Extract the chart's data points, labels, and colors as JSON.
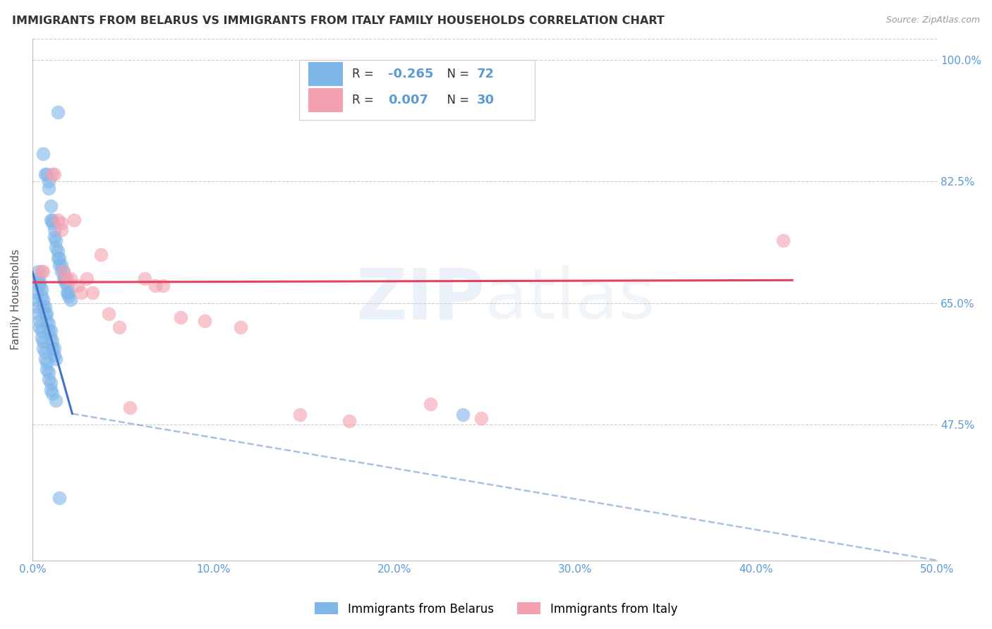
{
  "title": "IMMIGRANTS FROM BELARUS VS IMMIGRANTS FROM ITALY FAMILY HOUSEHOLDS CORRELATION CHART",
  "source": "Source: ZipAtlas.com",
  "ylabel": "Family Households",
  "legend_labels": [
    "Immigrants from Belarus",
    "Immigrants from Italy"
  ],
  "R_belarus": -0.265,
  "N_belarus": 72,
  "R_italy": 0.007,
  "N_italy": 30,
  "xlim": [
    0.0,
    0.5
  ],
  "ylim": [
    0.28,
    1.03
  ],
  "yticks": [
    0.475,
    0.65,
    0.825,
    1.0
  ],
  "ytick_labels": [
    "47.5%",
    "65.0%",
    "82.5%",
    "100.0%"
  ],
  "xticks": [
    0.0,
    0.1,
    0.2,
    0.3,
    0.4,
    0.5
  ],
  "xtick_labels": [
    "0.0%",
    "10.0%",
    "20.0%",
    "30.0%",
    "40.0%",
    "50.0%"
  ],
  "color_belarus": "#7EB6E8",
  "color_italy": "#F4A0B0",
  "color_line_belarus": "#4472C4",
  "color_line_italy": "#E84060",
  "color_axis_labels": "#5B9BD5",
  "watermark_zip": "ZIP",
  "watermark_atlas": "atlas",
  "scatter_belarus_x": [
    0.014,
    0.006,
    0.007,
    0.008,
    0.009,
    0.009,
    0.01,
    0.01,
    0.011,
    0.011,
    0.012,
    0.012,
    0.013,
    0.013,
    0.014,
    0.014,
    0.015,
    0.015,
    0.016,
    0.016,
    0.017,
    0.017,
    0.018,
    0.018,
    0.019,
    0.019,
    0.02,
    0.02,
    0.021,
    0.003,
    0.003,
    0.004,
    0.004,
    0.005,
    0.005,
    0.006,
    0.006,
    0.007,
    0.007,
    0.008,
    0.008,
    0.009,
    0.009,
    0.01,
    0.01,
    0.011,
    0.011,
    0.012,
    0.012,
    0.013,
    0.002,
    0.002,
    0.003,
    0.003,
    0.004,
    0.004,
    0.005,
    0.005,
    0.006,
    0.006,
    0.007,
    0.007,
    0.008,
    0.008,
    0.009,
    0.009,
    0.01,
    0.01,
    0.011,
    0.013,
    0.015,
    0.238
  ],
  "scatter_belarus_y": [
    0.925,
    0.865,
    0.835,
    0.835,
    0.825,
    0.815,
    0.79,
    0.77,
    0.77,
    0.765,
    0.755,
    0.745,
    0.74,
    0.73,
    0.725,
    0.715,
    0.715,
    0.705,
    0.705,
    0.695,
    0.695,
    0.685,
    0.685,
    0.68,
    0.675,
    0.665,
    0.665,
    0.66,
    0.655,
    0.695,
    0.685,
    0.68,
    0.675,
    0.67,
    0.66,
    0.655,
    0.645,
    0.645,
    0.635,
    0.635,
    0.625,
    0.62,
    0.61,
    0.61,
    0.6,
    0.595,
    0.585,
    0.585,
    0.575,
    0.57,
    0.665,
    0.655,
    0.645,
    0.635,
    0.625,
    0.615,
    0.61,
    0.6,
    0.595,
    0.585,
    0.58,
    0.57,
    0.565,
    0.555,
    0.55,
    0.54,
    0.535,
    0.525,
    0.52,
    0.51,
    0.37,
    0.49
  ],
  "scatter_italy_x": [
    0.005,
    0.006,
    0.011,
    0.012,
    0.014,
    0.016,
    0.016,
    0.017,
    0.019,
    0.021,
    0.023,
    0.025,
    0.027,
    0.03,
    0.033,
    0.038,
    0.042,
    0.048,
    0.054,
    0.062,
    0.068,
    0.072,
    0.082,
    0.095,
    0.115,
    0.148,
    0.175,
    0.22,
    0.248,
    0.415
  ],
  "scatter_italy_y": [
    0.695,
    0.695,
    0.835,
    0.835,
    0.77,
    0.765,
    0.755,
    0.695,
    0.685,
    0.685,
    0.77,
    0.675,
    0.665,
    0.685,
    0.665,
    0.72,
    0.635,
    0.615,
    0.5,
    0.685,
    0.675,
    0.675,
    0.63,
    0.625,
    0.615,
    0.49,
    0.48,
    0.505,
    0.485,
    0.74
  ],
  "reg_line_belarus_x0": 0.0,
  "reg_line_belarus_y0": 0.695,
  "reg_line_belarus_x1_solid": 0.022,
  "reg_line_belarus_y1_solid": 0.491,
  "reg_line_belarus_x2_dash": 0.5,
  "reg_line_belarus_y2_dash": 0.28,
  "reg_line_italy_x0": 0.0,
  "reg_line_italy_y0": 0.68,
  "reg_line_italy_x1": 0.42,
  "reg_line_italy_y1": 0.683
}
